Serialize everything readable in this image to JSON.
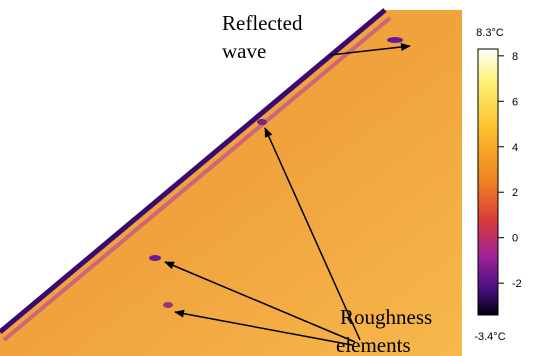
{
  "annotations": {
    "reflected": [
      "Reflected",
      "wave"
    ],
    "roughness": [
      "Roughness",
      "elements"
    ]
  },
  "colorbar": {
    "lim": [
      {
        "value": -3.4,
        "label": "-3.4°C"
      },
      {
        "value": 8.3,
        "label": "8.3°C"
      }
    ],
    "ticks": [
      8,
      6,
      4,
      2,
      0,
      -2
    ]
  }
}
